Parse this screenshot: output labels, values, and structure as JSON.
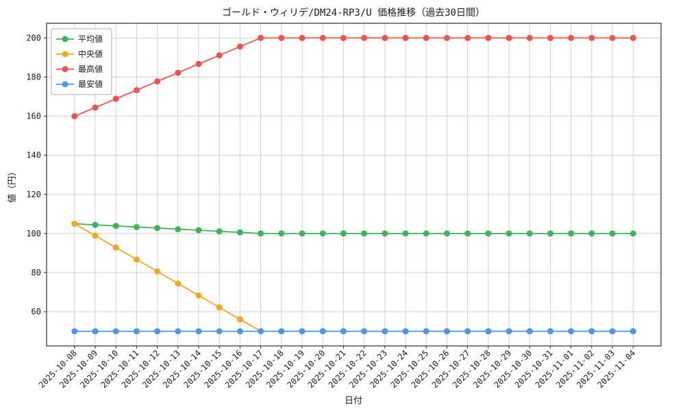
{
  "chart_data": {
    "type": "line",
    "title": "ゴールド・ウィリデ/DM24-RP3/U 価格推移（過去30日間）",
    "xlabel": "日付",
    "ylabel": "値（円）",
    "x": [
      "2025-10-08",
      "2025-10-09",
      "2025-10-10",
      "2025-10-11",
      "2025-10-12",
      "2025-10-13",
      "2025-10-14",
      "2025-10-15",
      "2025-10-16",
      "2025-10-17",
      "2025-10-18",
      "2025-10-19",
      "2025-10-20",
      "2025-10-21",
      "2025-10-22",
      "2025-10-23",
      "2025-10-24",
      "2025-10-25",
      "2025-10-26",
      "2025-10-27",
      "2025-10-28",
      "2025-10-29",
      "2025-10-30",
      "2025-10-31",
      "2025-11-01",
      "2025-11-02",
      "2025-11-03",
      "2025-11-04"
    ],
    "series": [
      {
        "name": "平均値",
        "color": "#3bb45a",
        "values": [
          105.0,
          104.4,
          103.9,
          103.3,
          102.8,
          102.2,
          101.7,
          101.1,
          100.6,
          100.0,
          100.0,
          100.0,
          100.0,
          100.0,
          100.0,
          100.0,
          100.0,
          100.0,
          100.0,
          100.0,
          100.0,
          100.0,
          100.0,
          100.0,
          100.0,
          100.0,
          100.0,
          100.0
        ]
      },
      {
        "name": "中央値",
        "color": "#f5a623",
        "values": [
          105.0,
          98.9,
          92.8,
          86.7,
          80.6,
          74.4,
          68.3,
          62.2,
          56.1,
          50.0,
          50.0,
          50.0,
          50.0,
          50.0,
          50.0,
          50.0,
          50.0,
          50.0,
          50.0,
          50.0,
          50.0,
          50.0,
          50.0,
          50.0,
          50.0,
          50.0,
          50.0,
          50.0
        ]
      },
      {
        "name": "最高値",
        "color": "#ef5350",
        "values": [
          160.0,
          164.4,
          168.9,
          173.3,
          177.8,
          182.2,
          186.7,
          191.1,
          195.6,
          200.0,
          200.0,
          200.0,
          200.0,
          200.0,
          200.0,
          200.0,
          200.0,
          200.0,
          200.0,
          200.0,
          200.0,
          200.0,
          200.0,
          200.0,
          200.0,
          200.0,
          200.0,
          200.0
        ]
      },
      {
        "name": "最安値",
        "color": "#4d96f0",
        "values": [
          50.0,
          50.0,
          50.0,
          50.0,
          50.0,
          50.0,
          50.0,
          50.0,
          50.0,
          50.0,
          50.0,
          50.0,
          50.0,
          50.0,
          50.0,
          50.0,
          50.0,
          50.0,
          50.0,
          50.0,
          50.0,
          50.0,
          50.0,
          50.0,
          50.0,
          50.0,
          50.0,
          50.0
        ]
      }
    ],
    "yticks": [
      60,
      80,
      100,
      120,
      140,
      160,
      180,
      200
    ],
    "ylim": [
      42.5,
      207.5
    ],
    "grid": true,
    "legend_position": "upper left"
  }
}
